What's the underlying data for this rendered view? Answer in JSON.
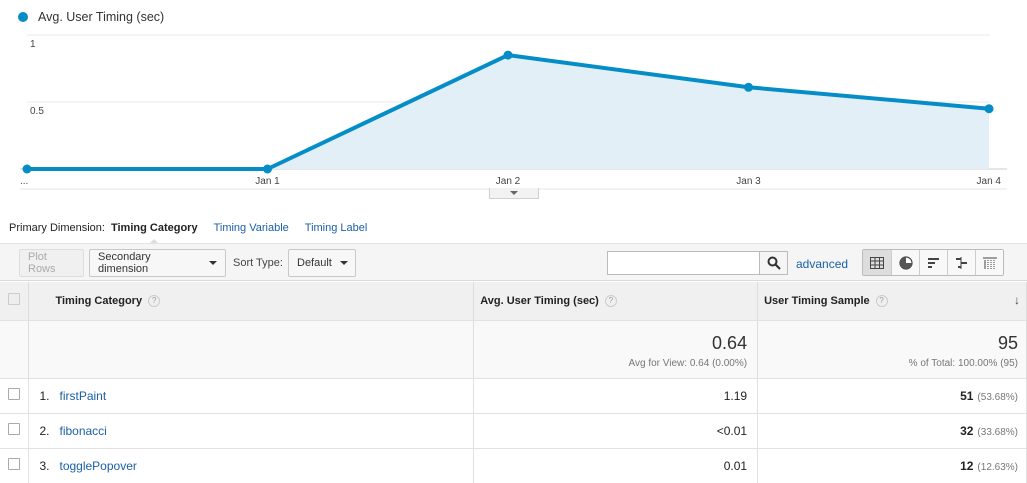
{
  "chart": {
    "legend": "Avg. User Timing (sec)",
    "colors": {
      "line": "#058dc7",
      "fill": "#e2eff7"
    },
    "y_ticks": [
      "1",
      "0.5"
    ],
    "x_labels": [
      "...",
      "Jan 1",
      "Jan 2",
      "Jan 3",
      "Jan 4"
    ]
  },
  "chart_data": {
    "type": "area",
    "title": "",
    "series": [
      {
        "name": "Avg. User Timing (sec)",
        "values": [
          0,
          0,
          0.85,
          0.61,
          0.45
        ]
      }
    ],
    "categories": [
      "...",
      "Jan 1",
      "Jan 2",
      "Jan 3",
      "Jan 4"
    ],
    "ylim": [
      0,
      1
    ],
    "grid": true
  },
  "dimensions": {
    "label": "Primary Dimension:",
    "active": "Timing Category",
    "links": [
      "Timing Variable",
      "Timing Label"
    ]
  },
  "toolbar": {
    "plot_rows": "Plot Rows",
    "secondary": "Secondary dimension",
    "sort_type_label": "Sort Type:",
    "sort_value": "Default",
    "search_value": "",
    "advanced": "advanced"
  },
  "table": {
    "headers": [
      "Timing Category",
      "Avg. User Timing (sec)",
      "User Timing Sample"
    ],
    "totals": {
      "avg": "0.64",
      "avg_sub": "Avg for View: 0.64 (0.00%)",
      "sample": "95",
      "sample_sub": "% of Total: 100.00% (95)"
    },
    "rows": [
      {
        "index": "1.",
        "category": "firstPaint",
        "avg": "1.19",
        "sample": "51",
        "pct": "(53.68%)"
      },
      {
        "index": "2.",
        "category": "fibonacci",
        "avg": "<0.01",
        "sample": "32",
        "pct": "(33.68%)"
      },
      {
        "index": "3.",
        "category": "togglePopover",
        "avg": "0.01",
        "sample": "12",
        "pct": "(12.63%)"
      }
    ]
  }
}
